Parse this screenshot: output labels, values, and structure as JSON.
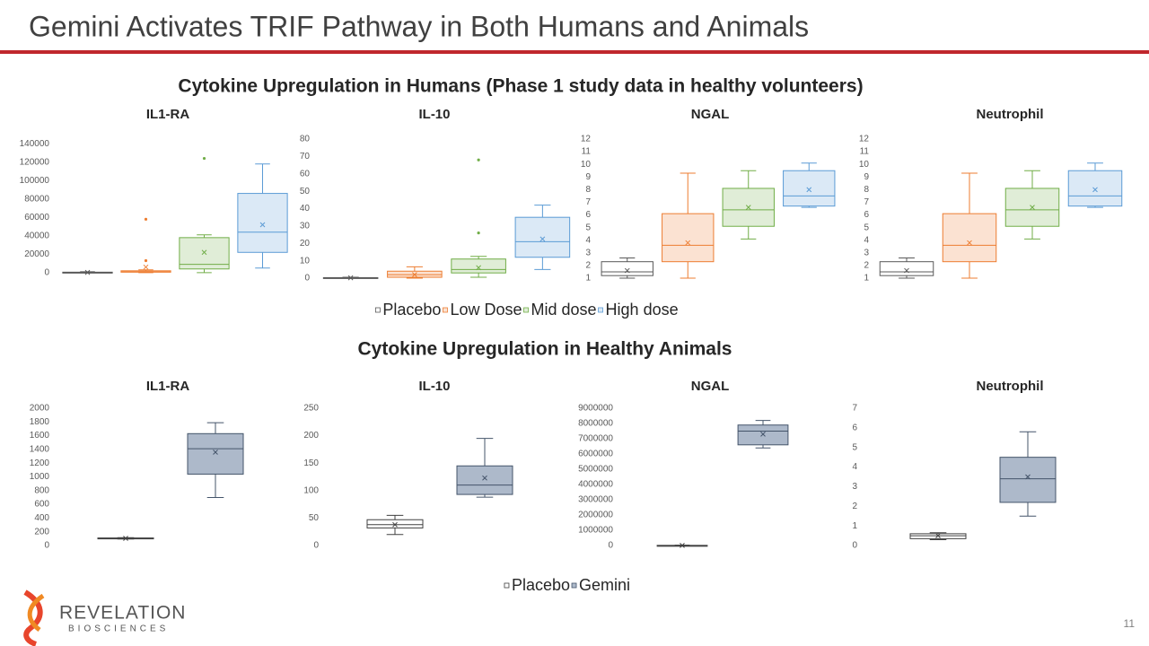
{
  "header": {
    "title": "Gemini Activates TRIF Pathway in Both Humans and Animals"
  },
  "sections": [
    "Cytokine Upregulation in Humans (Phase 1 study data in healthy volunteers)",
    "Cytokine Upregulation in Healthy Animals"
  ],
  "footer": {
    "logo": "REVELATION",
    "logo_sub": "BIOSCIENCES",
    "page": "11"
  },
  "chart_data": [
    {
      "type": "box",
      "title": "IL1-RA",
      "ylim": [
        -5000,
        145000
      ],
      "yticks": [
        0,
        20000,
        40000,
        60000,
        80000,
        100000,
        120000,
        140000
      ],
      "series": [
        {
          "name": "Placebo",
          "color": "#595959",
          "min": 0,
          "q1": 0,
          "median": 0,
          "q3": 500,
          "max": 1000,
          "mean": 200,
          "outliers": []
        },
        {
          "name": "Low Dose",
          "color": "#ed7d31",
          "min": 0,
          "q1": 500,
          "median": 1000,
          "q3": 2000,
          "max": 3000,
          "mean": 6000,
          "outliers": [
            13000,
            58000
          ]
        },
        {
          "name": "Mid dose",
          "color": "#70ad47",
          "min": 0,
          "q1": 4000,
          "median": 9000,
          "q3": 38000,
          "max": 41000,
          "mean": 22000,
          "outliers": [
            124000
          ]
        },
        {
          "name": "High dose",
          "color": "#5b9bd5",
          "min": 5000,
          "q1": 22000,
          "median": 44000,
          "q3": 86000,
          "max": 118000,
          "mean": 52000,
          "outliers": []
        }
      ]
    },
    {
      "type": "box",
      "title": "IL-10",
      "ylim": [
        0,
        80
      ],
      "yticks": [
        0,
        10,
        20,
        30,
        40,
        50,
        60,
        70,
        80
      ],
      "series": [
        {
          "name": "Placebo",
          "color": "#595959",
          "min": 0,
          "q1": 0,
          "median": 0,
          "q3": 0.3,
          "max": 0.5,
          "mean": 0.2,
          "outliers": []
        },
        {
          "name": "Low Dose",
          "color": "#ed7d31",
          "min": 0,
          "q1": 0.5,
          "median": 2,
          "q3": 4,
          "max": 6.5,
          "mean": 2,
          "outliers": []
        },
        {
          "name": "Mid dose",
          "color": "#70ad47",
          "min": 0.5,
          "q1": 3,
          "median": 5,
          "q3": 11,
          "max": 12.5,
          "mean": 6,
          "outliers": [
            26,
            68
          ]
        },
        {
          "name": "High dose",
          "color": "#5b9bd5",
          "min": 5,
          "q1": 12,
          "median": 21,
          "q3": 35,
          "max": 42,
          "mean": 22.5,
          "outliers": []
        }
      ]
    },
    {
      "type": "box",
      "title": "NGAL",
      "ylim": [
        1,
        12
      ],
      "yticks": [
        1,
        2,
        3,
        4,
        5,
        6,
        7,
        8,
        9,
        10,
        11,
        12
      ],
      "series": [
        {
          "name": "Placebo",
          "color": "#595959",
          "min": 1,
          "q1": 1.2,
          "median": 1.5,
          "q3": 2.3,
          "max": 2.6,
          "mean": 1.6,
          "outliers": []
        },
        {
          "name": "Low Dose",
          "color": "#ed7d31",
          "min": 1,
          "q1": 2.3,
          "median": 3.6,
          "q3": 6.1,
          "max": 9.3,
          "mean": 3.8,
          "outliers": []
        },
        {
          "name": "Mid dose",
          "color": "#70ad47",
          "min": 4.1,
          "q1": 5.1,
          "median": 6.4,
          "q3": 8.1,
          "max": 9.5,
          "mean": 6.6,
          "outliers": []
        },
        {
          "name": "High dose",
          "color": "#5b9bd5",
          "min": 6.6,
          "q1": 6.7,
          "median": 7.5,
          "q3": 9.5,
          "max": 10.1,
          "mean": 8,
          "outliers": []
        }
      ]
    },
    {
      "type": "box",
      "title": "Neutrophil",
      "ylim": [
        1,
        12
      ],
      "yticks": [
        1,
        2,
        3,
        4,
        5,
        6,
        7,
        8,
        9,
        10,
        11,
        12
      ],
      "series": [
        {
          "name": "Placebo",
          "color": "#595959",
          "min": 1,
          "q1": 1.2,
          "median": 1.5,
          "q3": 2.3,
          "max": 2.6,
          "mean": 1.6,
          "outliers": []
        },
        {
          "name": "Low Dose",
          "color": "#ed7d31",
          "min": 1,
          "q1": 2.3,
          "median": 3.6,
          "q3": 6.1,
          "max": 9.3,
          "mean": 3.8,
          "outliers": []
        },
        {
          "name": "Mid dose",
          "color": "#70ad47",
          "min": 4.1,
          "q1": 5.1,
          "median": 6.4,
          "q3": 8.1,
          "max": 9.5,
          "mean": 6.6,
          "outliers": []
        },
        {
          "name": "High dose",
          "color": "#5b9bd5",
          "min": 6.6,
          "q1": 6.7,
          "median": 7.5,
          "q3": 9.5,
          "max": 10.1,
          "mean": 8,
          "outliers": []
        }
      ]
    },
    {
      "type": "box",
      "title": "IL1-RA",
      "ylim": [
        0,
        2000
      ],
      "yticks": [
        0,
        200,
        400,
        600,
        800,
        1000,
        1200,
        1400,
        1600,
        1800,
        2000
      ],
      "series": [
        {
          "name": "Placebo",
          "color": "#404040",
          "min": 95,
          "q1": 100,
          "median": 105,
          "q3": 110,
          "max": 115,
          "mean": 105,
          "outliers": []
        },
        {
          "name": "Gemini",
          "color": "#44546a",
          "min": 700,
          "q1": 1040,
          "median": 1410,
          "q3": 1630,
          "max": 1790,
          "mean": 1360,
          "outliers": []
        }
      ]
    },
    {
      "type": "box",
      "title": "IL-10",
      "ylim": [
        0,
        250
      ],
      "yticks": [
        0,
        50,
        100,
        150,
        200,
        250
      ],
      "series": [
        {
          "name": "Placebo",
          "color": "#404040",
          "min": 20,
          "q1": 32,
          "median": 38,
          "q3": 47,
          "max": 55,
          "mean": 38,
          "outliers": []
        },
        {
          "name": "Gemini",
          "color": "#44546a",
          "min": 88,
          "q1": 93,
          "median": 110,
          "q3": 145,
          "max": 195,
          "mean": 123,
          "outliers": []
        }
      ]
    },
    {
      "type": "box",
      "title": "NGAL",
      "ylim": [
        0,
        9000000
      ],
      "yticks": [
        0,
        1000000,
        2000000,
        3000000,
        4000000,
        5000000,
        6000000,
        7000000,
        8000000,
        9000000
      ],
      "series": [
        {
          "name": "Placebo",
          "color": "#404040",
          "min": 0,
          "q1": 0,
          "median": 0,
          "q3": 10000,
          "max": 20000,
          "mean": 5000,
          "outliers": []
        },
        {
          "name": "Gemini",
          "color": "#44546a",
          "min": 6400000,
          "q1": 6600000,
          "median": 7500000,
          "q3": 7900000,
          "max": 8200000,
          "mean": 7300000,
          "outliers": []
        }
      ]
    },
    {
      "type": "box",
      "title": "Neutrophil",
      "ylim": [
        0,
        7
      ],
      "yticks": [
        0,
        1,
        2,
        3,
        4,
        5,
        6,
        7
      ],
      "series": [
        {
          "name": "Placebo",
          "color": "#404040",
          "min": 0.3,
          "q1": 0.35,
          "median": 0.5,
          "q3": 0.6,
          "max": 0.65,
          "mean": 0.5,
          "outliers": []
        },
        {
          "name": "Gemini",
          "color": "#44546a",
          "min": 1.5,
          "q1": 2.2,
          "median": 3.4,
          "q3": 4.5,
          "max": 5.8,
          "mean": 3.5,
          "outliers": []
        }
      ]
    }
  ]
}
